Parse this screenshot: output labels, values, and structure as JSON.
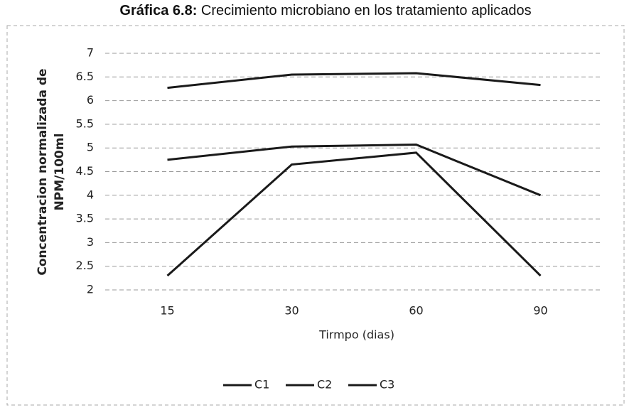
{
  "chart_data": {
    "type": "line",
    "title_label": "Gráfica 6.8:",
    "title": "Crecimiento microbiano en los tratamiento aplicados",
    "y_label": [
      "Concentracion normalizada de",
      "NPM/100ml"
    ],
    "x_label": "Tirmpo (dias)",
    "categories": [
      "15",
      "30",
      "60",
      "90"
    ],
    "series": [
      {
        "name": "C1",
        "color": "#1a1a1a",
        "values": [
          6.27,
          6.55,
          6.58,
          6.33
        ]
      },
      {
        "name": "C2",
        "color": "#1a1a1a",
        "values": [
          4.75,
          5.03,
          5.07,
          4.0
        ]
      },
      {
        "name": "C3",
        "color": "#1a1a1a",
        "values": [
          2.3,
          4.65,
          4.9,
          2.3
        ]
      }
    ],
    "ylim": [
      2,
      7
    ],
    "yticks": [
      2,
      2.5,
      3,
      3.5,
      4,
      4.5,
      5,
      5.5,
      6,
      6.5,
      7
    ],
    "grid": true,
    "legend": "bottom"
  }
}
